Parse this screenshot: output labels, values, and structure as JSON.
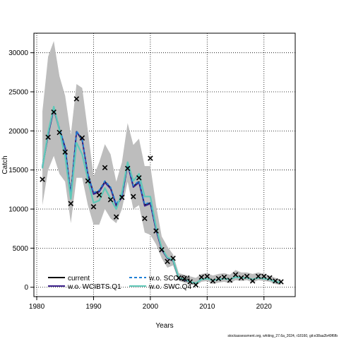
{
  "chart_data": {
    "type": "line",
    "title": "",
    "xlabel": "Years",
    "ylabel": "Catch",
    "xlim": [
      1979.5,
      2025.5
    ],
    "ylim": [
      -1200,
      32500
    ],
    "x_ticks": [
      1980,
      1990,
      2000,
      2010,
      2020
    ],
    "y_ticks": [
      0,
      5000,
      10000,
      15000,
      20000,
      25000,
      30000
    ],
    "x_tick_labels": [
      "1980",
      "1990",
      "2000",
      "2010",
      "2020"
    ],
    "y_tick_labels": [
      "0",
      "5000",
      "10000",
      "15000",
      "20000",
      "25000",
      "30000"
    ],
    "grid": true,
    "legend_position": "bottom-left",
    "years": [
      1981,
      1982,
      1983,
      1984,
      1985,
      1986,
      1987,
      1988,
      1989,
      1990,
      1991,
      1992,
      1993,
      1994,
      1995,
      1996,
      1997,
      1998,
      1999,
      2000,
      2001,
      2002,
      2003,
      2004,
      2005,
      2006,
      2007,
      2008,
      2009,
      2010,
      2011,
      2012,
      2013,
      2014,
      2015,
      2016,
      2017,
      2018,
      2019,
      2020,
      2021,
      2022,
      2023
    ],
    "observed_label": "x",
    "observed": [
      13800,
      19200,
      22400,
      19800,
      17300,
      10700,
      24100,
      19100,
      13600,
      10300,
      11800,
      15300,
      11200,
      9000,
      11500,
      15200,
      11600,
      14000,
      8800,
      16500,
      7200,
      4800,
      3300,
      3700,
      1200,
      1100,
      700,
      300,
      1300,
      1400,
      800,
      1100,
      1300,
      900,
      1600,
      1200,
      1400,
      800,
      1400,
      1400,
      1200,
      800,
      700
    ],
    "band": {
      "upper": [
        22500,
        29500,
        31500,
        27000,
        24500,
        19500,
        26000,
        25500,
        20000,
        14200,
        16000,
        18300,
        17000,
        13500,
        16000,
        21000,
        18200,
        19000,
        15500,
        15500,
        10500,
        6500,
        5200,
        4200,
        1800,
        1600,
        1400,
        1200,
        1700,
        1800,
        1500,
        1700,
        1800,
        1600,
        2200,
        1900,
        1900,
        1700,
        1900,
        1700,
        1500,
        1200,
        1000
      ],
      "lower": [
        10500,
        15000,
        16800,
        14500,
        13500,
        8200,
        14000,
        14000,
        10500,
        8000,
        8000,
        10000,
        8800,
        8200,
        10000,
        13500,
        10000,
        10500,
        7000,
        6700,
        5500,
        3700,
        2500,
        2800,
        800,
        600,
        400,
        200,
        700,
        800,
        400,
        600,
        700,
        500,
        900,
        800,
        900,
        600,
        900,
        800,
        700,
        400,
        300
      ]
    },
    "series": [
      {
        "name": "current",
        "color": "#000000",
        "dash": "solid",
        "values": [
          15400,
          19500,
          22900,
          20200,
          17900,
          11800,
          19900,
          18800,
          14500,
          12000,
          12300,
          13500,
          12700,
          10500,
          11600,
          15800,
          12900,
          13500,
          10500,
          10800,
          7400,
          4900,
          3700,
          3400,
          1100,
          900,
          700,
          500,
          1000,
          1100,
          900,
          1000,
          1100,
          1000,
          1300,
          1200,
          1200,
          1000,
          1200,
          1100,
          1000,
          700,
          600
        ]
      },
      {
        "name": "w.o. WCIBTS.Q1",
        "color": "#3b1f8a",
        "dash": "solid",
        "values": [
          15300,
          19400,
          22800,
          20100,
          17800,
          11700,
          19900,
          18900,
          14400,
          11900,
          12200,
          13400,
          12600,
          10400,
          11500,
          15700,
          12800,
          13400,
          10400,
          10700,
          7300,
          4800,
          3700,
          3400,
          1100,
          900,
          700,
          500,
          1000,
          1100,
          900,
          1000,
          1100,
          1000,
          1300,
          1200,
          1200,
          1000,
          1200,
          1100,
          1000,
          700,
          600
        ]
      },
      {
        "name": "w.o. SCO.Q4",
        "color": "#1f7fd6",
        "dash": "dashed",
        "values": [
          15500,
          19600,
          23000,
          20300,
          18000,
          11900,
          20000,
          18900,
          14500,
          12100,
          12400,
          13600,
          12800,
          10600,
          11700,
          15900,
          13000,
          13600,
          10600,
          10900,
          7500,
          5000,
          3800,
          3500,
          1200,
          1000,
          700,
          500,
          1000,
          1100,
          900,
          1000,
          1100,
          1000,
          1300,
          1200,
          1200,
          1000,
          1200,
          1100,
          1000,
          700,
          600
        ]
      },
      {
        "name": "w.o. SWC.Q4",
        "color": "#5fc8b8",
        "dash": "solid",
        "values": [
          15200,
          19800,
          23100,
          20100,
          16700,
          11300,
          18500,
          17000,
          13800,
          10800,
          11100,
          12700,
          11300,
          10000,
          12100,
          16000,
          13600,
          14500,
          11600,
          11600,
          7700,
          5000,
          3800,
          3500,
          1200,
          1000,
          700,
          500,
          1000,
          1100,
          900,
          1000,
          1100,
          1000,
          1300,
          1200,
          1200,
          1000,
          1200,
          1100,
          1000,
          700,
          600
        ]
      }
    ],
    "legend": [
      "current",
      "w.o. WCIBTS.Q1",
      "w.o. SCO.Q4",
      "w.o. SWC.Q4"
    ]
  },
  "footer_text": "stockassessment.org, whiting_27.6a_2024, r18160, git:e38aa2b49f6fb"
}
